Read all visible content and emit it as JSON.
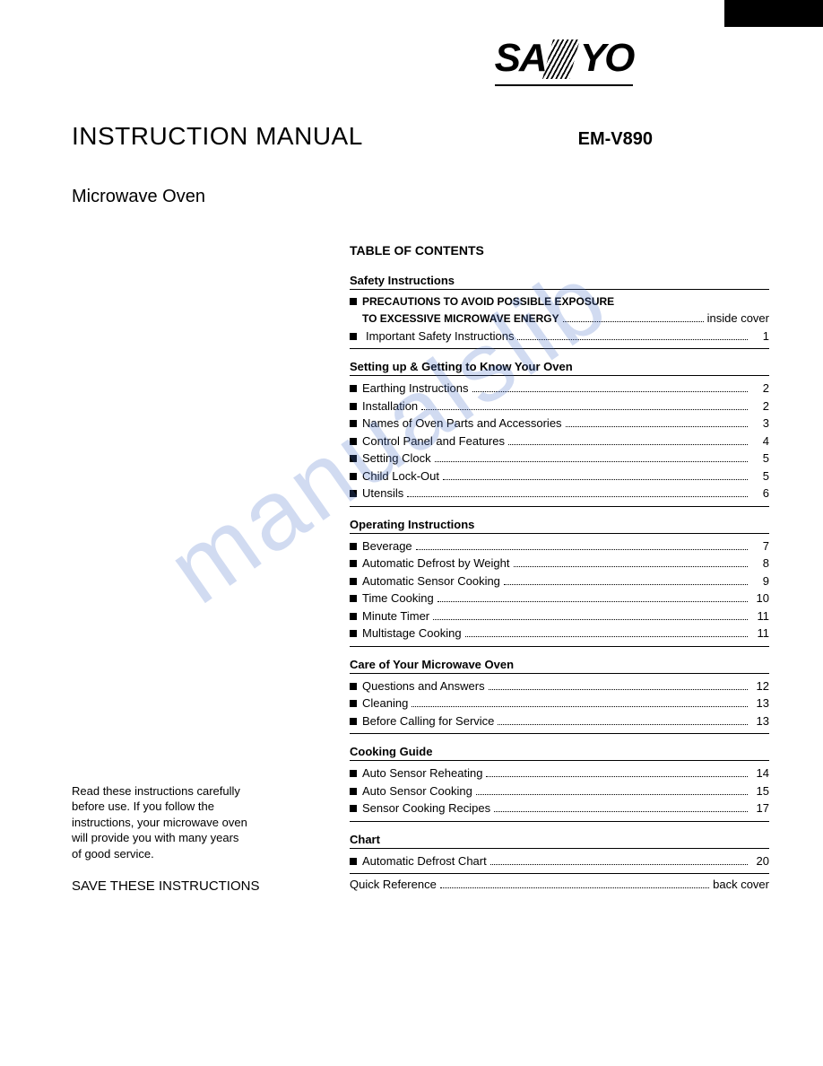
{
  "brand": "SANYO",
  "doc_title": "INSTRUCTION MANUAL",
  "model": "EM-V890",
  "product": "Microwave Oven",
  "toc_heading": "TABLE OF CONTENTS",
  "watermark": "manualslib",
  "sections": [
    {
      "title": "Safety  Instructions",
      "items": [
        {
          "label": "PRECAUTIONS TO AVOID POSSIBLE EXPOSURE",
          "page": "",
          "caps": true,
          "nodots": true
        },
        {
          "label": "TO EXCESSIVE MICROWAVE ENERGY",
          "page": "inside cover",
          "caps": true,
          "cont": true
        },
        {
          "label": "Important Safety Instructions",
          "page": "1",
          "indent": true
        }
      ]
    },
    {
      "title": "Setting up & Getting to Know Your Oven",
      "items": [
        {
          "label": "Earthing Instructions",
          "page": "2"
        },
        {
          "label": "Installation",
          "page": "2"
        },
        {
          "label": "Names of Oven Parts and Accessories",
          "page": "3"
        },
        {
          "label": "Control Panel and Features",
          "page": "4"
        },
        {
          "label": "Setting Clock",
          "page": "5"
        },
        {
          "label": "Child Lock-Out",
          "page": "5"
        },
        {
          "label": "Utensils",
          "page": "6"
        }
      ]
    },
    {
      "title": "Operating Instructions",
      "items": [
        {
          "label": "Beverage",
          "page": "7"
        },
        {
          "label": "Automatic Defrost by Weight",
          "page": "8"
        },
        {
          "label": "Automatic Sensor Cooking",
          "page": "9"
        },
        {
          "label": "Time Cooking",
          "page": "10"
        },
        {
          "label": "Minute Timer",
          "page": "11"
        },
        {
          "label": "Multistage Cooking",
          "page": "11"
        }
      ]
    },
    {
      "title": "Care of Your Microwave Oven",
      "items": [
        {
          "label": "Questions and Answers",
          "page": "12"
        },
        {
          "label": "Cleaning",
          "page": "13"
        },
        {
          "label": "Before Calling for Service",
          "page": "13"
        }
      ]
    },
    {
      "title": "Cooking Guide",
      "items": [
        {
          "label": "Auto Sensor Reheating",
          "page": "14"
        },
        {
          "label": "Auto Sensor Cooking",
          "page": "15"
        },
        {
          "label": "Sensor Cooking Recipes",
          "page": "17"
        }
      ]
    },
    {
      "title": "Chart",
      "items": [
        {
          "label": "Automatic Defrost Chart",
          "page": "20"
        }
      ]
    }
  ],
  "quick_ref": {
    "label": "Quick Reference",
    "page": "back cover"
  },
  "note": "Read these instructions carefully before use. If you follow the instructions, your microwave oven will provide you with many years of good service.",
  "save": "SAVE THESE INSTRUCTIONS"
}
